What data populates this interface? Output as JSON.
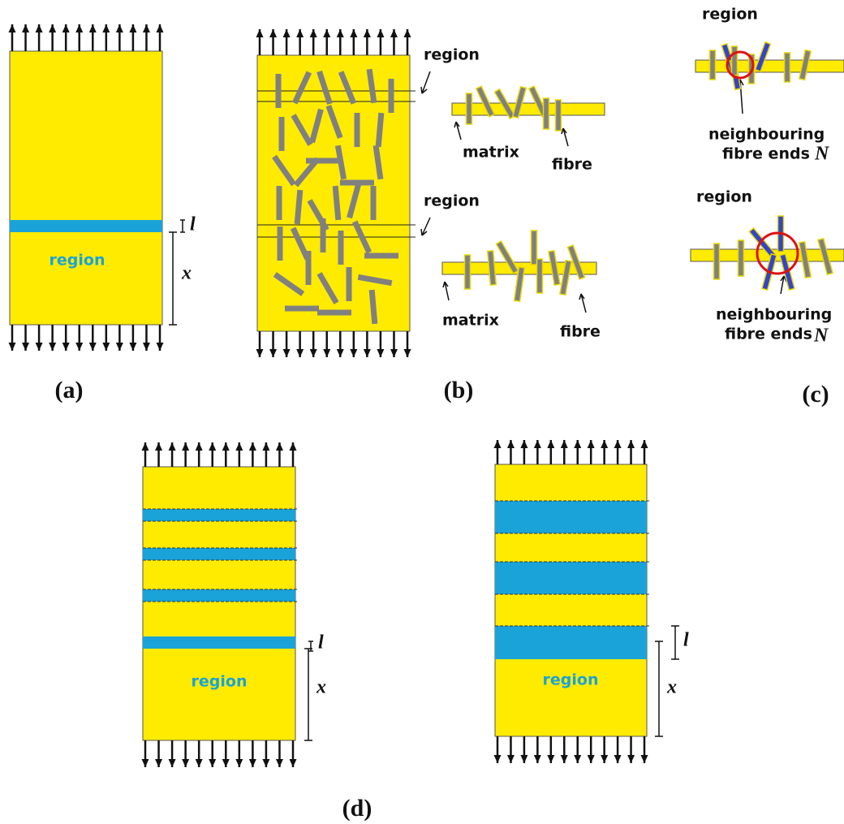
{
  "panel_a": {
    "region_label": "region",
    "length_label": "l",
    "position_label": "x",
    "caption": "(a)"
  },
  "panel_b": {
    "regions": [
      {
        "label": "region",
        "matrix_label": "matrix",
        "fibre_label": "fibre"
      },
      {
        "label": "region",
        "matrix_label": "matrix",
        "fibre_label": "fibre"
      }
    ],
    "caption": "(b)"
  },
  "panel_c": {
    "regions": [
      {
        "label": "region",
        "annotation_line1": "neighbouring",
        "annotation_line2": "fibre ends",
        "symbol": "N"
      },
      {
        "label": "region",
        "annotation_line1": "neighbouring",
        "annotation_line2": "fibre ends",
        "symbol": "N"
      }
    ],
    "caption": "(c)"
  },
  "panel_d": {
    "left": {
      "length_label": "l",
      "position_label": "x",
      "region_label": "region"
    },
    "right": {
      "length_label": "l",
      "position_label": "x",
      "region_label": "region"
    },
    "caption": "(d)"
  }
}
